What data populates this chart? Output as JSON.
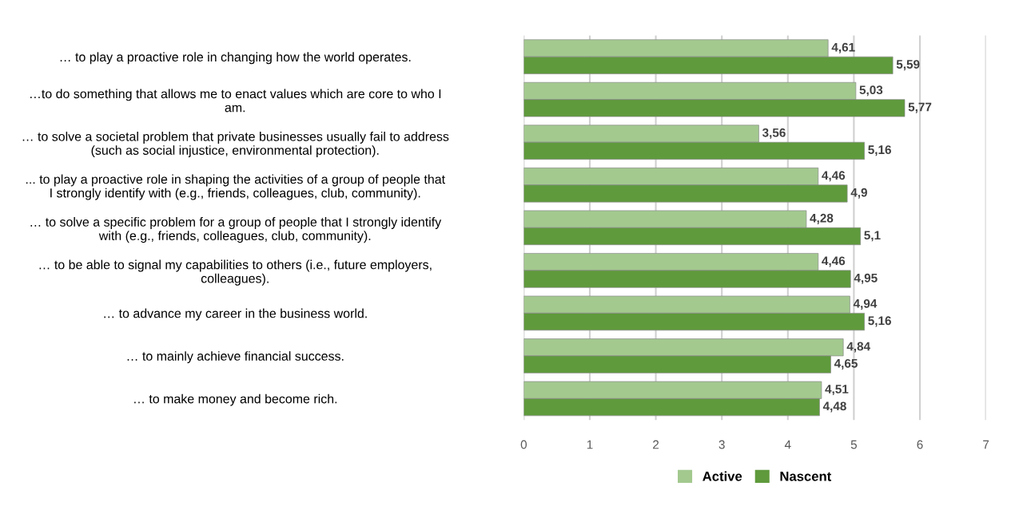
{
  "chart_data": {
    "type": "bar",
    "orientation": "horizontal",
    "categories": [
      "… to play a proactive role in changing how the world operates.",
      "…to do something that allows me to enact values which are core to who I\nam.",
      "… to solve a societal problem that private businesses usually fail to address\n(such as social injustice, environmental protection).",
      "... to play a proactive role in shaping the activities of a group of people that\nI strongly identify with (e.g., friends, colleagues, club, community).",
      "… to solve a specific problem for a group of people that I strongly identify\nwith (e.g., friends, colleagues, club, community).",
      "… to be able to signal my capabilities to others (i.e., future employers,\ncolleagues).",
      "… to advance my career in the business world.",
      "… to mainly achieve financial success.",
      "… to make money and become rich."
    ],
    "series": [
      {
        "name": "Active",
        "color": "#a3c98f",
        "values": [
          4.61,
          5.03,
          3.56,
          4.46,
          4.28,
          4.46,
          4.94,
          4.84,
          4.51
        ],
        "value_labels": [
          "4,61",
          "5,03",
          "3,56",
          "4,46",
          "4,28",
          "4,46",
          "4,94",
          "4,84",
          "4,51"
        ]
      },
      {
        "name": "Nascent",
        "color": "#5f9a3c",
        "values": [
          5.59,
          5.77,
          5.16,
          4.9,
          5.1,
          4.95,
          5.16,
          4.65,
          4.48
        ],
        "value_labels": [
          "5,59",
          "5,77",
          "5,16",
          "4,9",
          "5,1",
          "4,95",
          "5,16",
          "4,65",
          "4,48"
        ]
      }
    ],
    "xlim": [
      0,
      7
    ],
    "xticks": [
      0,
      1,
      2,
      3,
      4,
      5,
      6,
      7
    ],
    "grid": "x",
    "legend": "bottom"
  }
}
